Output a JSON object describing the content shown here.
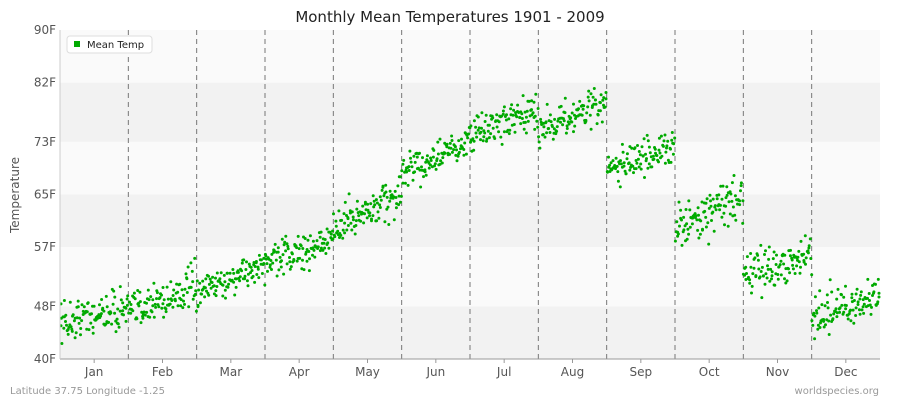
{
  "chart_data": {
    "type": "scatter",
    "title": "Monthly Mean Temperatures 1901 - 2009",
    "ylabel": "Temperature",
    "xlabel": "",
    "y_ticks": [
      "40F",
      "48F",
      "57F",
      "65F",
      "73F",
      "82F",
      "90F"
    ],
    "y_tick_values": [
      40,
      48,
      57,
      65,
      73,
      82,
      90
    ],
    "ylim": [
      40,
      90
    ],
    "categories": [
      "Jan",
      "Feb",
      "Mar",
      "Apr",
      "May",
      "Jun",
      "Jul",
      "Aug",
      "Sep",
      "Oct",
      "Nov",
      "Dec"
    ],
    "grid": "horizontal bands, dashed vertical month separators",
    "legend": {
      "position": "top-left",
      "entries": [
        "Mean Temp"
      ]
    },
    "series": [
      {
        "name": "Mean Temp",
        "color": "#00aa00",
        "points_per_month": 109,
        "monthly_ranges": [
          {
            "month": "Jan",
            "start_mean": 45.5,
            "end_mean": 48.0,
            "spread": 2.5
          },
          {
            "month": "Feb",
            "start_mean": 47.0,
            "end_mean": 51.0,
            "spread": 2.5
          },
          {
            "month": "Mar",
            "start_mean": 50.0,
            "end_mean": 54.5,
            "spread": 2.0
          },
          {
            "month": "Apr",
            "start_mean": 54.5,
            "end_mean": 58.0,
            "spread": 2.0
          },
          {
            "month": "May",
            "start_mean": 60.0,
            "end_mean": 65.0,
            "spread": 2.5
          },
          {
            "month": "Jun",
            "start_mean": 68.0,
            "end_mean": 73.0,
            "spread": 2.0
          },
          {
            "month": "Jul",
            "start_mean": 74.0,
            "end_mean": 77.5,
            "spread": 2.0
          },
          {
            "month": "Aug",
            "start_mean": 75.0,
            "end_mean": 79.0,
            "spread": 2.0
          },
          {
            "month": "Sep",
            "start_mean": 69.0,
            "end_mean": 72.0,
            "spread": 2.0
          },
          {
            "month": "Oct",
            "start_mean": 60.0,
            "end_mean": 64.5,
            "spread": 2.5
          },
          {
            "month": "Nov",
            "start_mean": 52.5,
            "end_mean": 56.0,
            "spread": 2.5
          },
          {
            "month": "Dec",
            "start_mean": 46.5,
            "end_mean": 49.5,
            "spread": 2.5
          }
        ]
      }
    ]
  },
  "footer": {
    "location": "Latitude 37.75 Longitude -1.25",
    "source": "worldspecies.org"
  },
  "colors": {
    "band_light": "#fafafa",
    "band_dark": "#f2f2f2",
    "separator": "#777777",
    "point": "#00aa00"
  }
}
